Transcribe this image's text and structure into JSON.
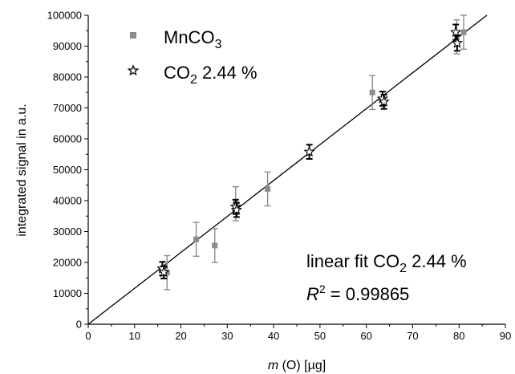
{
  "chart_data": {
    "type": "scatter",
    "xlabel": {
      "italic": "m",
      "rest": " (O) [µg]"
    },
    "ylabel": "integrated signal in a.u.",
    "xlim": [
      0,
      90
    ],
    "ylim": [
      0,
      100000
    ],
    "xticks": [
      "0",
      "10",
      "20",
      "30",
      "40",
      "50",
      "60",
      "70",
      "80",
      "90"
    ],
    "yticks": [
      "0",
      "10000",
      "20000",
      "30000",
      "40000",
      "50000",
      "60000",
      "70000",
      "80000",
      "90000",
      "100000"
    ],
    "grid": false,
    "legend_position": "top-left",
    "series": [
      {
        "name": {
          "base": "MnCO",
          "sub": "3",
          "tail": ""
        },
        "marker": "square",
        "color": "#8c8c8c",
        "points": [
          {
            "x": 17,
            "y": 16700,
            "err": 5500
          },
          {
            "x": 23.3,
            "y": 27500,
            "err": 5500
          },
          {
            "x": 27.3,
            "y": 25500,
            "err": 5500
          },
          {
            "x": 31.8,
            "y": 39000,
            "err": 5500
          },
          {
            "x": 38.7,
            "y": 43800,
            "err": 5500
          },
          {
            "x": 61.3,
            "y": 75000,
            "err": 5500
          },
          {
            "x": 79.5,
            "y": 93000,
            "err": 5500
          },
          {
            "x": 81,
            "y": 94500,
            "err": 5500
          }
        ]
      },
      {
        "name": {
          "base": "CO",
          "sub": "2",
          "tail": " 2.44 %"
        },
        "marker": "star",
        "color": "#000000",
        "points": [
          {
            "x": 16,
            "y": 18000,
            "err": 2200
          },
          {
            "x": 16.3,
            "y": 16800,
            "err": 2000
          },
          {
            "x": 31.8,
            "y": 38000,
            "err": 2300
          },
          {
            "x": 32,
            "y": 37000,
            "err": 2300
          },
          {
            "x": 47.7,
            "y": 55800,
            "err": 2300
          },
          {
            "x": 63.5,
            "y": 73000,
            "err": 2300
          },
          {
            "x": 63.8,
            "y": 72000,
            "err": 2300
          },
          {
            "x": 79.3,
            "y": 94500,
            "err": 2500
          },
          {
            "x": 79.6,
            "y": 91000,
            "err": 2500
          }
        ]
      }
    ],
    "fit_line": {
      "x": [
        0,
        86
      ],
      "y": [
        0,
        100000
      ]
    },
    "annotation": {
      "line1": {
        "base": "linear fit CO",
        "sub": "2",
        "tail": " 2.44 %"
      },
      "line2": {
        "italic": "R",
        "sup": "2",
        "tail": " = 0.99865"
      }
    }
  }
}
